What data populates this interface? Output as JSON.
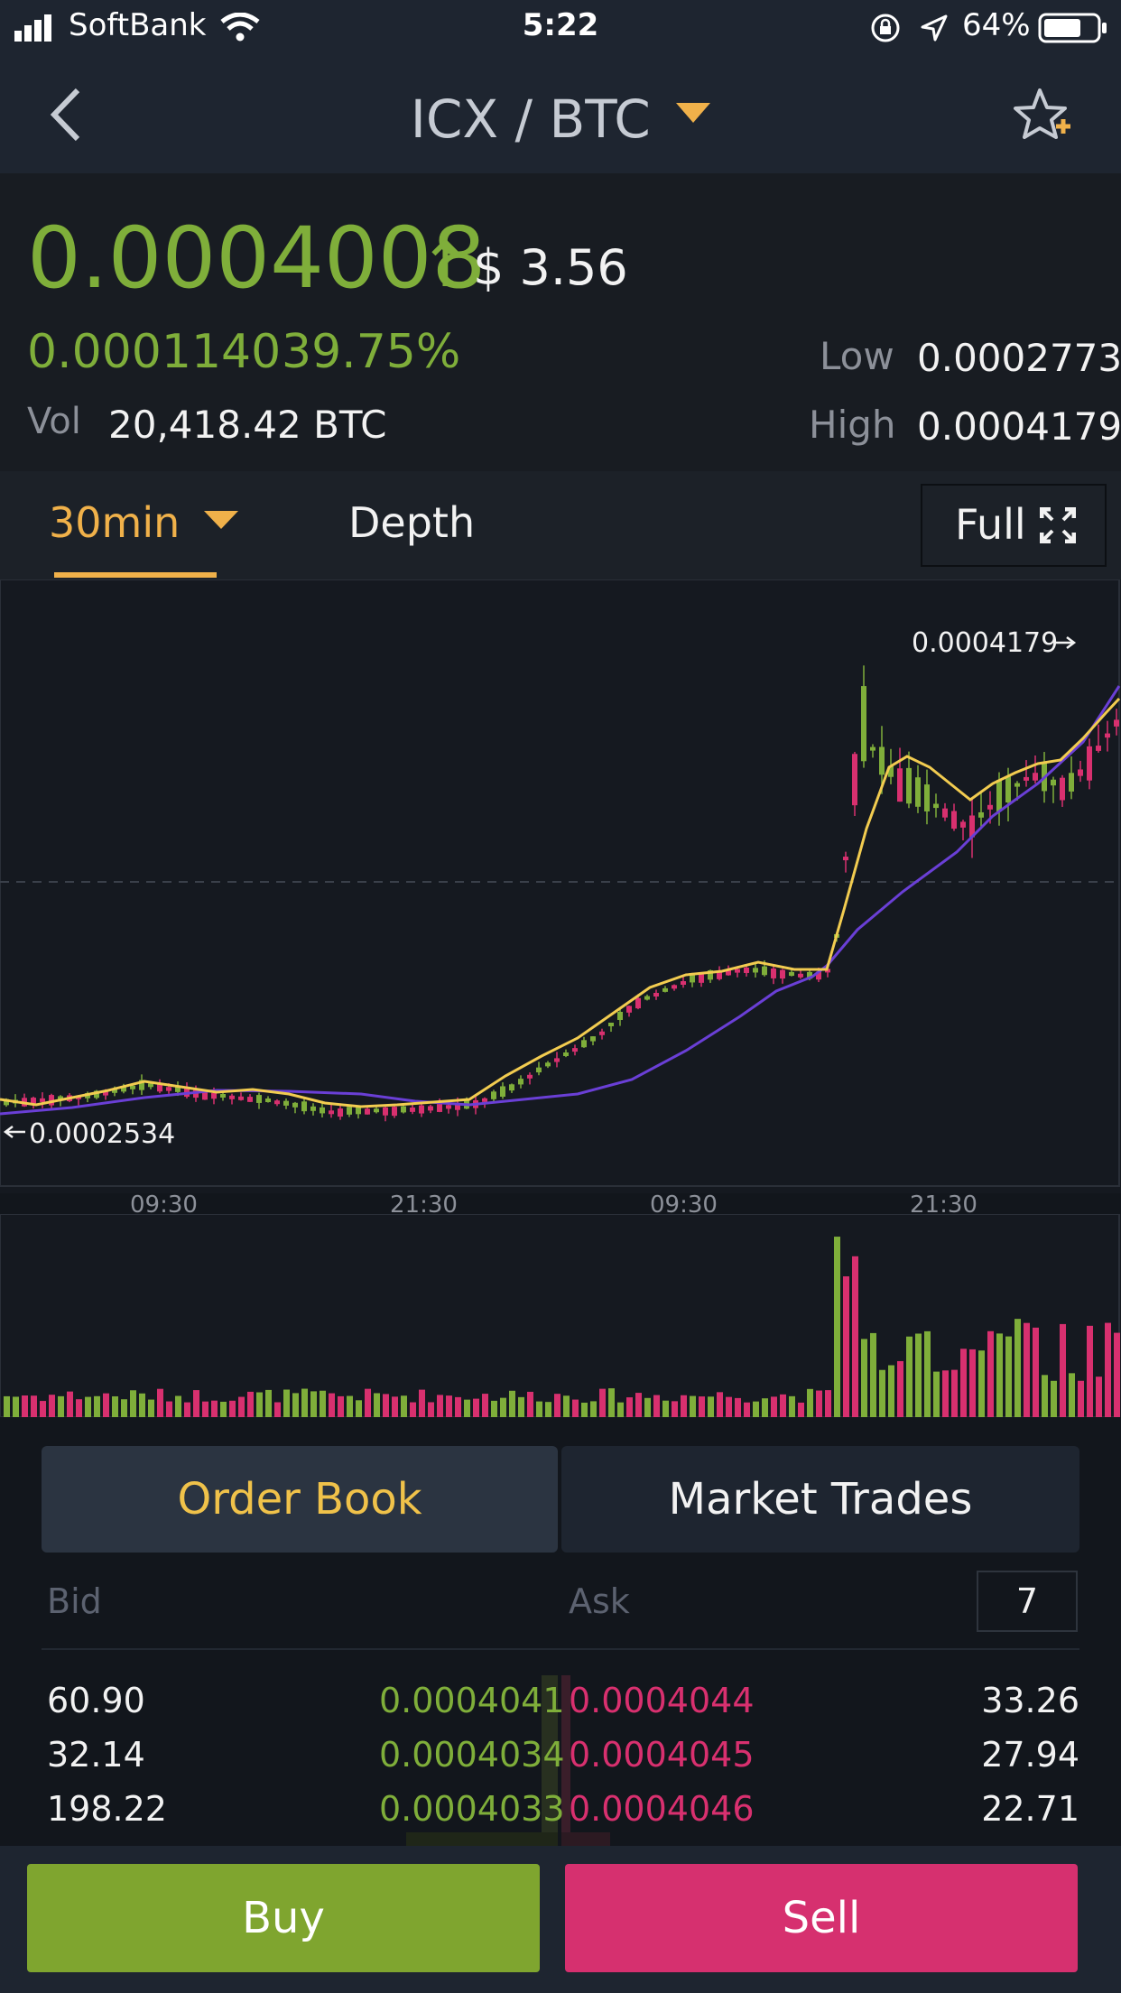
{
  "status": {
    "carrier": "SoftBank",
    "time": "5:22",
    "battery": "64%"
  },
  "nav": {
    "pair": "ICX / BTC",
    "back_icon": "chevron-left-icon",
    "star_icon": "star-plus-icon"
  },
  "price": {
    "last": "0.0004008",
    "arrow": "↑",
    "usd": "$ 3.56",
    "change": "0.0001140",
    "change_pct": "39.75%",
    "vol_label": "Vol",
    "vol": "20,418.42 BTC",
    "low_label": "Low",
    "low": "0.0002773",
    "high_label": "High",
    "high": "0.0004179"
  },
  "tabs": {
    "interval": "30min",
    "depth": "Depth",
    "full": "Full"
  },
  "chart_data": {
    "type": "candlestick",
    "x_ticks": [
      "09:30",
      "21:30",
      "09:30",
      "21:30"
    ],
    "max_marker": "0.0004179",
    "min_marker": "0.0002534"
  },
  "orderbook": {
    "tab_active": "Order Book",
    "tab_other": "Market Trades",
    "bid_label": "Bid",
    "ask_label": "Ask",
    "precision": "7",
    "rows": [
      {
        "bid_qty": "60.90",
        "bid_price": "0.0004041",
        "ask_price": "0.0004044",
        "ask_qty": "33.26"
      },
      {
        "bid_qty": "32.14",
        "bid_price": "0.0004034",
        "ask_price": "0.0004045",
        "ask_qty": "27.94"
      },
      {
        "bid_qty": "198.22",
        "bid_price": "0.0004033",
        "ask_price": "0.0004046",
        "ask_qty": "22.71"
      }
    ]
  },
  "actions": {
    "buy": "Buy",
    "sell": "Sell"
  },
  "colors": {
    "up": "#7fae3a",
    "down": "#d8306f",
    "accent": "#f0b14a"
  }
}
